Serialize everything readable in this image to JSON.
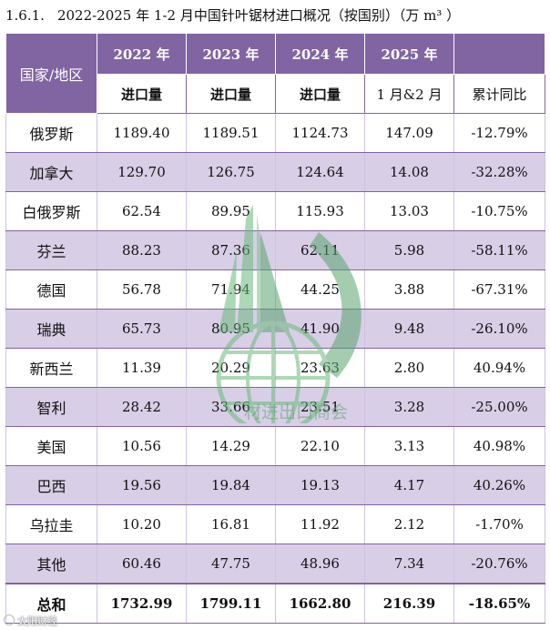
{
  "caption": {
    "number": "1.6.1.",
    "title": "2022-2025 年 1-2 月中国针叶锯材进口概况（按国别）（万 m³ ）"
  },
  "table": {
    "region_header": "国家/地区",
    "years": [
      "2022 年",
      "2023 年",
      "2024 年",
      "2025 年"
    ],
    "subheaders": [
      "进口量",
      "进口量",
      "进口量",
      "1 月&2 月",
      "累计同比"
    ],
    "rows": [
      {
        "region": "俄罗斯",
        "v2022": "1189.40",
        "v2023": "1189.51",
        "v2024": "1124.73",
        "v2025": "147.09",
        "yoy": "-12.79%"
      },
      {
        "region": "加拿大",
        "v2022": "129.70",
        "v2023": "126.75",
        "v2024": "124.64",
        "v2025": "14.08",
        "yoy": "-32.28%"
      },
      {
        "region": "白俄罗斯",
        "v2022": "62.54",
        "v2023": "89.95",
        "v2024": "115.93",
        "v2025": "13.03",
        "yoy": "-10.75%"
      },
      {
        "region": "芬兰",
        "v2022": "88.23",
        "v2023": "87.36",
        "v2024": "62.11",
        "v2025": "5.98",
        "yoy": "-58.11%"
      },
      {
        "region": "德国",
        "v2022": "56.78",
        "v2023": "71.94",
        "v2024": "44.25",
        "v2025": "3.88",
        "yoy": "-67.31%"
      },
      {
        "region": "瑞典",
        "v2022": "65.73",
        "v2023": "80.95",
        "v2024": "41.90",
        "v2025": "9.48",
        "yoy": "-26.10%"
      },
      {
        "region": "新西兰",
        "v2022": "11.39",
        "v2023": "20.29",
        "v2024": "23.63",
        "v2025": "2.80",
        "yoy": "40.94%"
      },
      {
        "region": "智利",
        "v2022": "28.42",
        "v2023": "33.66",
        "v2024": "23.51",
        "v2025": "3.28",
        "yoy": "-25.00%"
      },
      {
        "region": "美国",
        "v2022": "10.56",
        "v2023": "14.29",
        "v2024": "22.10",
        "v2025": "3.13",
        "yoy": "40.98%"
      },
      {
        "region": "巴西",
        "v2022": "19.56",
        "v2023": "19.84",
        "v2024": "19.13",
        "v2025": "4.17",
        "yoy": "40.26%"
      },
      {
        "region": "乌拉圭",
        "v2022": "10.20",
        "v2023": "16.81",
        "v2024": "11.92",
        "v2025": "2.12",
        "yoy": "-1.70%"
      },
      {
        "region": "其他",
        "v2022": "60.46",
        "v2023": "47.75",
        "v2024": "48.96",
        "v2025": "7.34",
        "yoy": "-20.76%"
      }
    ],
    "total": {
      "region": "总和",
      "v2022": "1732.99",
      "v2023": "1799.11",
      "v2024": "1662.80",
      "v2025": "216.39",
      "yoy": "-18.65%"
    }
  },
  "watermark": {
    "text": "材进出口商会",
    "icon": "globe-leaf-logo-icon"
  },
  "source_mark": {
    "text": "太阳财经",
    "icon": "source-logo-icon"
  },
  "colors": {
    "header_bg": "#8164a2",
    "stripe_bg": "#d8cee6",
    "watermark_green": "#5aa36f"
  }
}
